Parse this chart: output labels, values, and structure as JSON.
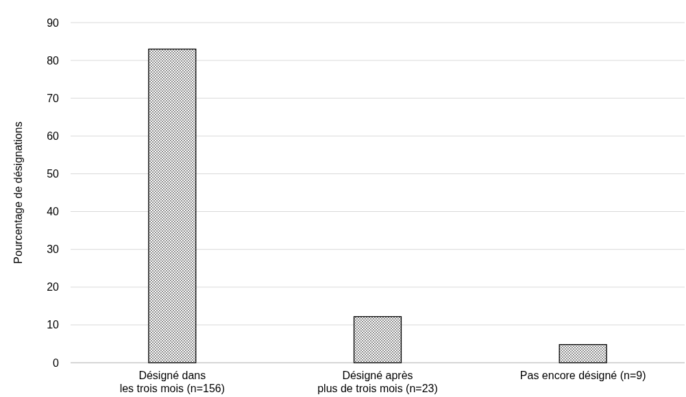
{
  "chart_data": {
    "type": "bar",
    "ylabel": "Pourcentage de désignations",
    "categories": [
      "Désigné dans\nles trois mois (n=156)",
      "Désigné après\nplus de trois mois (n=23)",
      "Pas encore désigné (n=9)"
    ],
    "values": [
      83,
      12.2,
      4.8
    ],
    "color": "#000000",
    "ylim": [
      0,
      90
    ],
    "yticks": [
      0,
      10,
      20,
      30,
      40,
      50,
      60,
      70,
      80,
      90
    ],
    "grid": "y"
  }
}
